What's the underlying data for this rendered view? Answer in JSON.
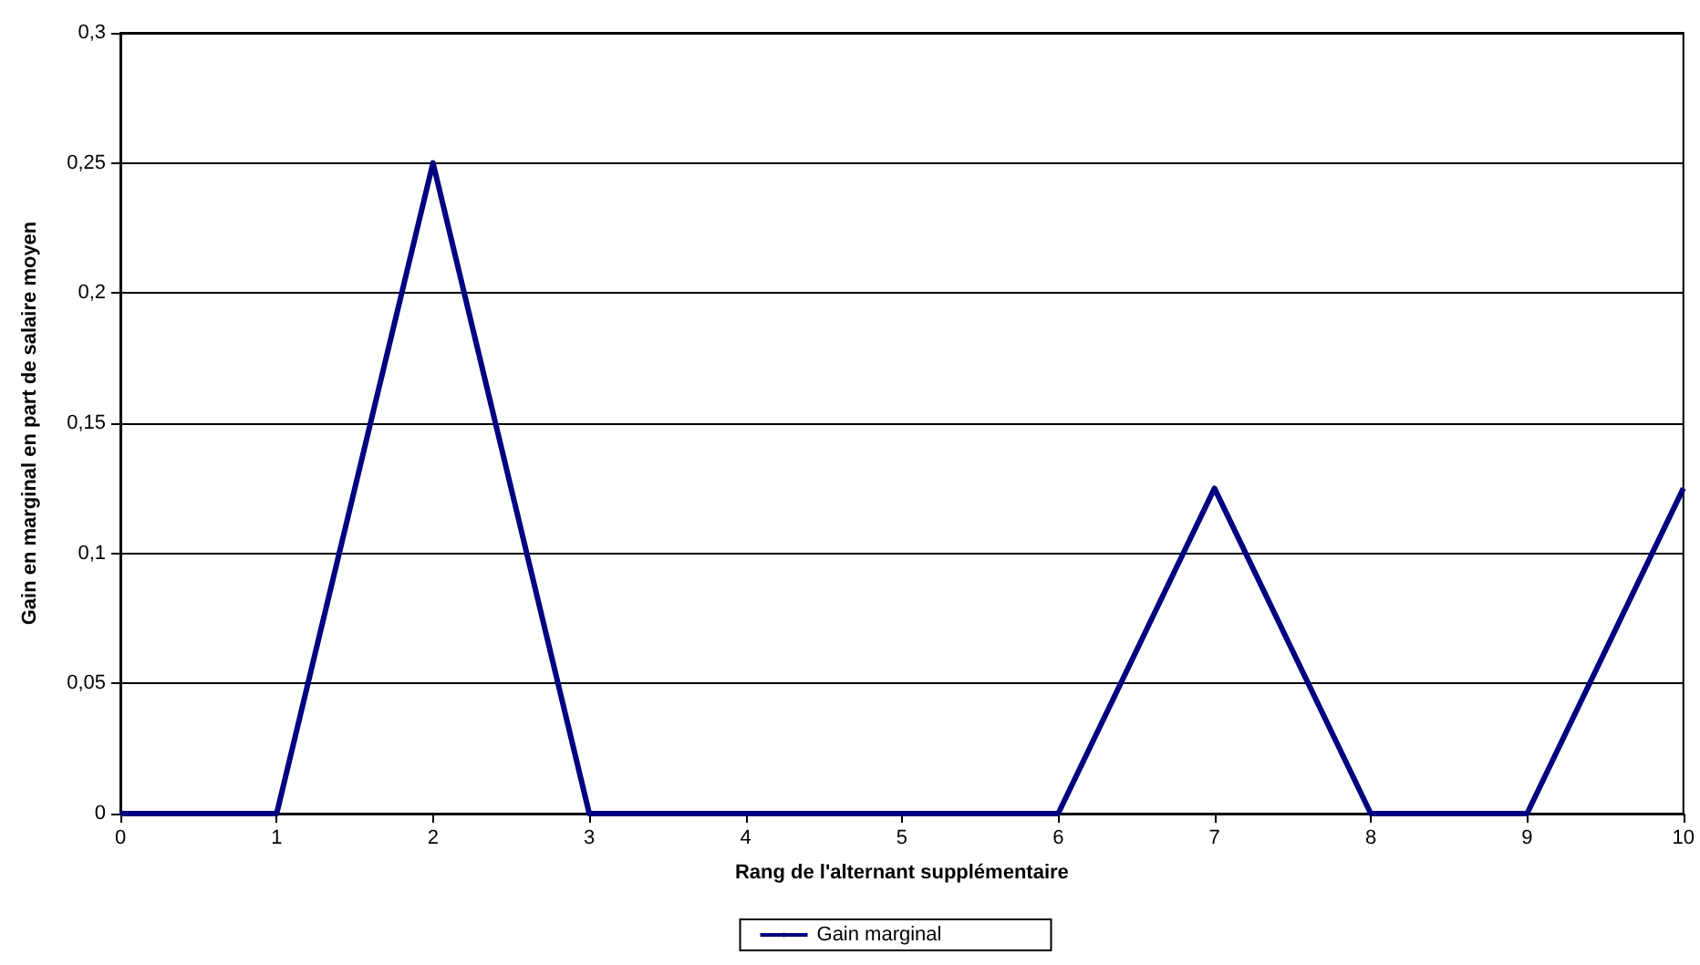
{
  "chart_data": {
    "type": "line",
    "xlabel": "Rang de l'alternant supplémentaire",
    "ylabel": "Gain en marginal en part de salaire moyen",
    "x": [
      0,
      1,
      2,
      3,
      4,
      5,
      6,
      7,
      8,
      9,
      10
    ],
    "series": [
      {
        "name": "Gain marginal",
        "color": "#000080",
        "values": [
          0,
          0,
          0.25,
          0,
          0,
          0,
          0,
          0.125,
          0,
          0,
          0.125
        ]
      }
    ],
    "xlim": [
      0,
      10
    ],
    "xticks": [
      0,
      1,
      2,
      3,
      4,
      5,
      6,
      7,
      8,
      9,
      10
    ],
    "ylim": [
      0,
      0.3
    ],
    "yticks": [
      {
        "value": 0,
        "label": "0"
      },
      {
        "value": 0.05,
        "label": "0,05"
      },
      {
        "value": 0.1,
        "label": "0,1"
      },
      {
        "value": 0.15,
        "label": "0,15"
      },
      {
        "value": 0.2,
        "label": "0,2"
      },
      {
        "value": 0.25,
        "label": "0,25"
      },
      {
        "value": 0.3,
        "label": "0,3"
      }
    ],
    "grid": "y",
    "legend": "bottom",
    "marker": "none",
    "line_style": "solid"
  }
}
